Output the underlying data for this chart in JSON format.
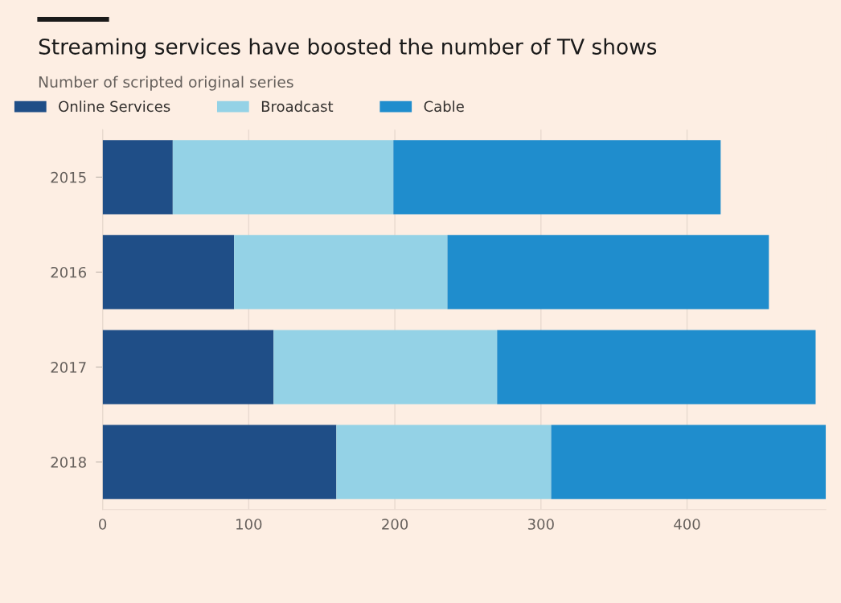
{
  "chart_data": {
    "type": "bar",
    "orientation": "horizontal",
    "stacked": true,
    "title": "Streaming services have boosted the number of TV shows",
    "subtitle": "Number of scripted original series",
    "categories": [
      "2015",
      "2016",
      "2017",
      "2018"
    ],
    "series": [
      {
        "name": "Online Services",
        "color": "#1f4e87",
        "values": [
          48,
          90,
          117,
          160
        ]
      },
      {
        "name": "Broadcast",
        "color": "#94d2e6",
        "values": [
          151,
          146,
          153,
          147
        ]
      },
      {
        "name": "Cable",
        "color": "#1f8dcd",
        "values": [
          224,
          220,
          218,
          188
        ]
      }
    ],
    "xlim": [
      0,
      495
    ],
    "xticks": [
      0,
      100,
      200,
      300,
      400
    ],
    "grid": "x",
    "legend": "top left"
  }
}
